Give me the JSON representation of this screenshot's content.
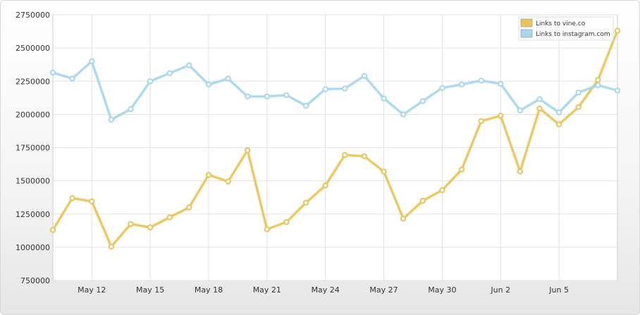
{
  "chart_data": {
    "type": "line",
    "title": "",
    "xlabel": "",
    "ylabel": "",
    "ylim": [
      750000,
      2750000
    ],
    "yticks": [
      750000,
      1000000,
      1250000,
      1500000,
      1750000,
      2000000,
      2250000,
      2500000,
      2750000
    ],
    "ytick_labels": [
      "750000",
      "1000000",
      "1250000",
      "1500000",
      "1750000",
      "2000000",
      "2250000",
      "2500000",
      "2750000"
    ],
    "x_labels": [
      "May 12",
      "May 15",
      "May 18",
      "May 21",
      "May 24",
      "May 27",
      "May 30",
      "Jun 2",
      "Jun 5"
    ],
    "x_label_positions": [
      2,
      5,
      8,
      11,
      14,
      17,
      20,
      23,
      26
    ],
    "x_count": 30,
    "grid": true,
    "legend_position": "top-right",
    "series": [
      {
        "name": "Links to vine.co",
        "color": "#e8c55c",
        "values": [
          1130000,
          1370000,
          1345000,
          1005000,
          1175000,
          1150000,
          1225000,
          1300000,
          1545000,
          1495000,
          1730000,
          1135000,
          1190000,
          1335000,
          1465000,
          1695000,
          1685000,
          1570000,
          1215000,
          1350000,
          1430000,
          1585000,
          1950000,
          1990000,
          1570000,
          2045000,
          1925000,
          2055000,
          2260000,
          2630000
        ]
      },
      {
        "name": "Links to instagram.com",
        "color": "#a8d6ec",
        "values": [
          2315000,
          2270000,
          2400000,
          1960000,
          2040000,
          2250000,
          2310000,
          2370000,
          2225000,
          2270000,
          2135000,
          2135000,
          2145000,
          2065000,
          2190000,
          2195000,
          2290000,
          2120000,
          2000000,
          2100000,
          2200000,
          2225000,
          2255000,
          2230000,
          2030000,
          2115000,
          2015000,
          2165000,
          2220000,
          2180000
        ]
      }
    ]
  }
}
